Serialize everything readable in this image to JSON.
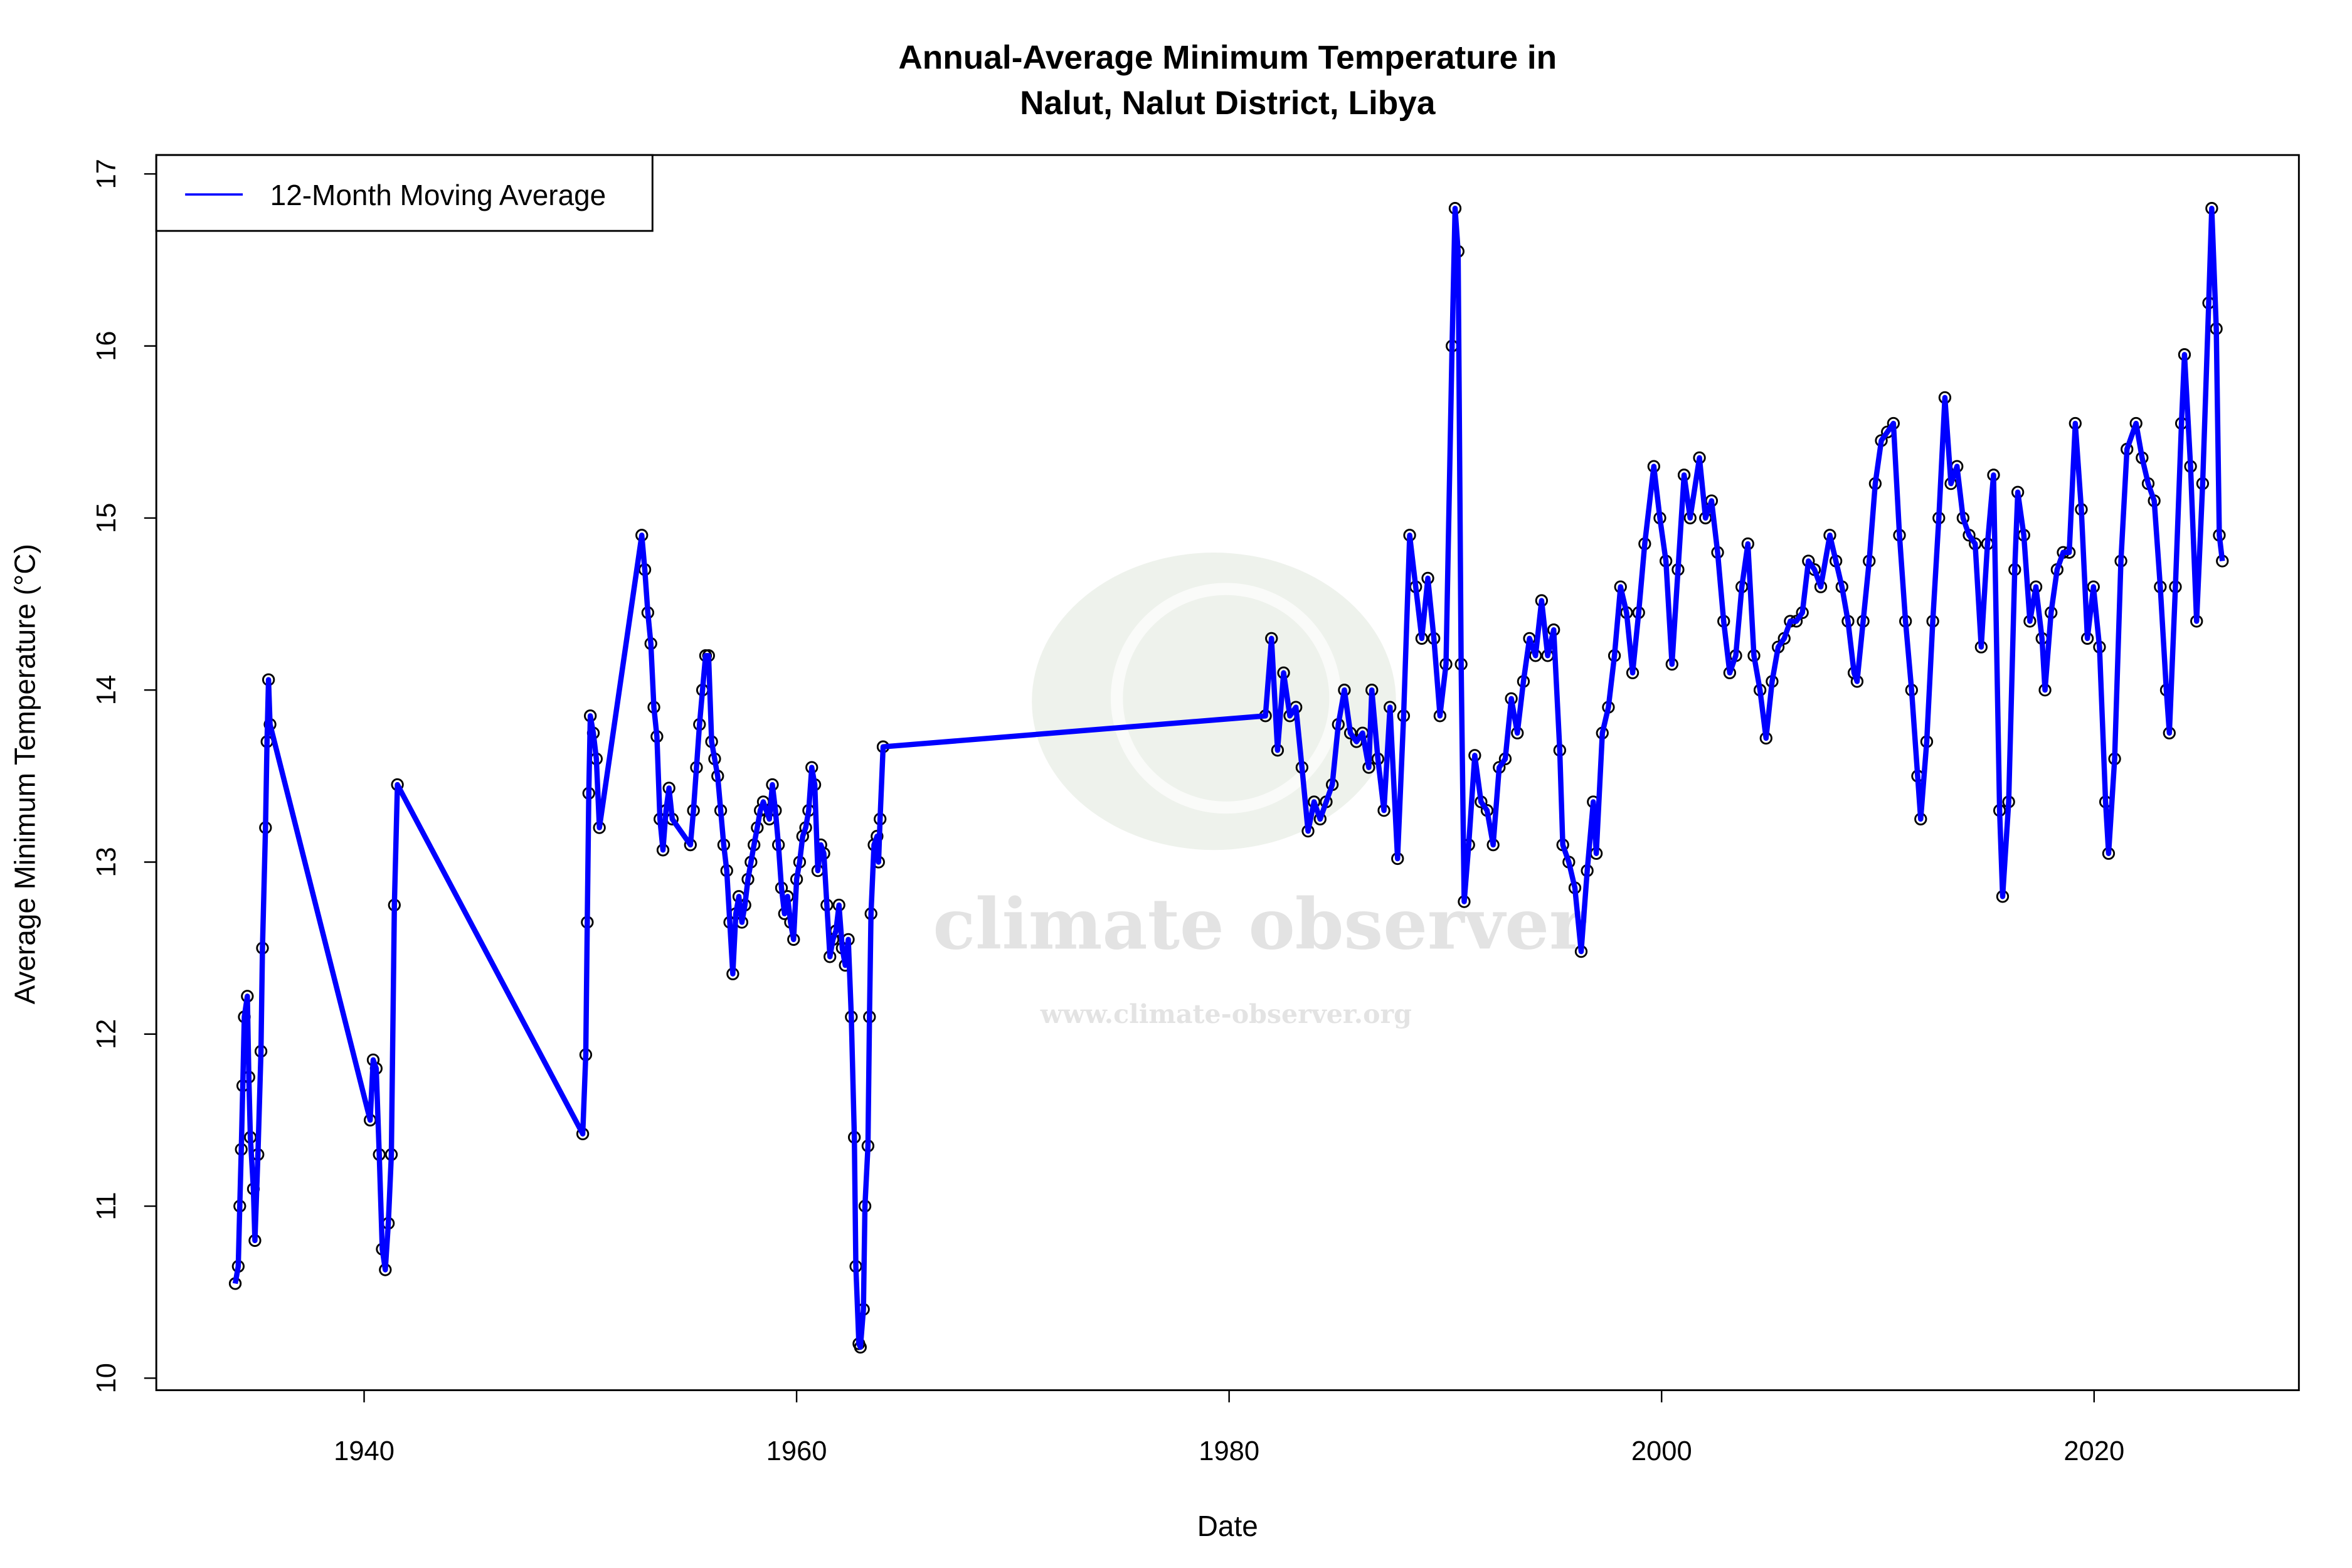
{
  "chart_data": {
    "type": "line",
    "title": [
      "Annual-Average Minimum Temperature in",
      "Nalut, Nalut District, Libya"
    ],
    "x_label": "Date",
    "y_label": "Average Minimum Temperature (°C)",
    "watermark": {
      "name": "climate observer",
      "url": "www.climate-observer.org"
    },
    "legend": "top-left",
    "markers": true,
    "marker_color": "#000000",
    "xlim": [
      1930.39,
      2029.47
    ],
    "ylim": [
      9.93,
      17.11
    ],
    "xticks": [
      1940,
      1960,
      1980,
      2000,
      2020
    ],
    "yticks": [
      10,
      11,
      12,
      13,
      14,
      15,
      16,
      17
    ],
    "x": [
      1934.04,
      1934.18,
      1934.25,
      1934.32,
      1934.39,
      1934.46,
      1934.6,
      1934.67,
      1934.74,
      1934.88,
      1934.95,
      1935.09,
      1935.23,
      1935.3,
      1935.44,
      1935.51,
      1935.58,
      1935.65,
      1940.28,
      1940.42,
      1940.56,
      1940.7,
      1940.84,
      1940.98,
      1941.12,
      1941.26,
      1941.4,
      1941.54,
      1950.11,
      1950.25,
      1950.32,
      1950.39,
      1950.46,
      1950.6,
      1950.74,
      1950.88,
      1952.84,
      1952.98,
      1953.12,
      1953.26,
      1953.4,
      1953.54,
      1953.68,
      1953.82,
      1953.96,
      1954.1,
      1954.25,
      1955.09,
      1955.23,
      1955.37,
      1955.51,
      1955.65,
      1955.79,
      1955.93,
      1956.07,
      1956.21,
      1956.35,
      1956.49,
      1956.63,
      1956.77,
      1956.91,
      1957.05,
      1957.19,
      1957.33,
      1957.47,
      1957.61,
      1957.75,
      1957.89,
      1958.03,
      1958.18,
      1958.32,
      1958.46,
      1958.6,
      1958.74,
      1958.88,
      1959.02,
      1959.16,
      1959.3,
      1959.44,
      1959.58,
      1959.72,
      1959.86,
      1960.0,
      1960.14,
      1960.28,
      1960.42,
      1960.56,
      1960.7,
      1960.84,
      1960.98,
      1961.12,
      1961.26,
      1961.4,
      1961.54,
      1961.68,
      1961.82,
      1961.96,
      1962.11,
      1962.25,
      1962.39,
      1962.53,
      1962.67,
      1962.74,
      1962.88,
      1962.95,
      1963.09,
      1963.16,
      1963.3,
      1963.37,
      1963.44,
      1963.58,
      1963.72,
      1963.79,
      1963.86,
      1964.0,
      1981.68,
      1981.96,
      1982.24,
      1982.52,
      1982.81,
      1983.09,
      1983.37,
      1983.65,
      1983.93,
      1984.21,
      1984.49,
      1984.77,
      1985.05,
      1985.33,
      1985.61,
      1985.89,
      1986.17,
      1986.46,
      1986.6,
      1986.88,
      1987.16,
      1987.44,
      1987.79,
      1988.07,
      1988.35,
      1988.63,
      1988.91,
      1989.19,
      1989.47,
      1989.75,
      1990.03,
      1990.31,
      1990.45,
      1990.59,
      1990.73,
      1990.87,
      1991.08,
      1991.36,
      1991.65,
      1991.93,
      1992.21,
      1992.49,
      1992.77,
      1993.05,
      1993.33,
      1993.61,
      1993.89,
      1994.17,
      1994.45,
      1994.73,
      1995.01,
      1995.29,
      1995.43,
      1995.71,
      1995.99,
      1996.28,
      1996.56,
      1996.84,
      1996.98,
      1997.26,
      1997.54,
      1997.82,
      1998.1,
      1998.38,
      1998.66,
      1998.94,
      1999.22,
      1999.64,
      1999.92,
      2000.2,
      2000.48,
      2000.76,
      2001.04,
      2001.32,
      2001.75,
      2002.03,
      2002.31,
      2002.59,
      2002.87,
      2003.15,
      2003.43,
      2003.71,
      2003.99,
      2004.27,
      2004.55,
      2004.83,
      2005.11,
      2005.39,
      2005.67,
      2005.95,
      2006.23,
      2006.51,
      2006.79,
      2007.07,
      2007.36,
      2007.78,
      2008.06,
      2008.34,
      2008.62,
      2008.9,
      2009.04,
      2009.32,
      2009.6,
      2009.88,
      2010.16,
      2010.44,
      2010.72,
      2011.0,
      2011.28,
      2011.56,
      2011.84,
      2011.98,
      2012.26,
      2012.54,
      2012.82,
      2013.1,
      2013.38,
      2013.66,
      2013.94,
      2014.22,
      2014.5,
      2014.78,
      2015.07,
      2015.35,
      2015.63,
      2015.77,
      2016.05,
      2016.33,
      2016.47,
      2016.75,
      2017.03,
      2017.31,
      2017.59,
      2017.73,
      2018.01,
      2018.29,
      2018.57,
      2018.85,
      2019.13,
      2019.41,
      2019.69,
      2019.97,
      2020.25,
      2020.53,
      2020.67,
      2020.95,
      2021.24,
      2021.52,
      2021.94,
      2022.22,
      2022.5,
      2022.78,
      2023.06,
      2023.34,
      2023.48,
      2023.76,
      2024.04,
      2024.18,
      2024.46,
      2024.74,
      2025.02,
      2025.3,
      2025.44,
      2025.65,
      2025.79,
      2025.93
    ],
    "series": [
      {
        "name": "12-Month Moving Average",
        "color": "#0000ff",
        "values": [
          10.55,
          10.65,
          11.0,
          11.33,
          11.7,
          12.1,
          12.22,
          11.75,
          11.4,
          11.1,
          10.8,
          11.3,
          11.9,
          12.5,
          13.2,
          13.7,
          14.06,
          13.8,
          11.5,
          11.85,
          11.8,
          11.3,
          10.75,
          10.63,
          10.9,
          11.3,
          12.75,
          13.45,
          11.42,
          11.88,
          12.65,
          13.4,
          13.85,
          13.75,
          13.6,
          13.2,
          14.9,
          14.7,
          14.45,
          14.27,
          13.9,
          13.73,
          13.25,
          13.07,
          13.3,
          13.43,
          13.25,
          13.1,
          13.3,
          13.55,
          13.8,
          14.0,
          14.2,
          14.2,
          13.7,
          13.6,
          13.5,
          13.3,
          13.1,
          12.95,
          12.65,
          12.35,
          12.7,
          12.8,
          12.65,
          12.75,
          12.9,
          13.0,
          13.1,
          13.2,
          13.3,
          13.35,
          13.3,
          13.25,
          13.45,
          13.3,
          13.1,
          12.85,
          12.7,
          12.8,
          12.65,
          12.55,
          12.9,
          13.0,
          13.15,
          13.2,
          13.3,
          13.55,
          13.45,
          12.95,
          13.1,
          13.05,
          12.75,
          12.45,
          12.55,
          12.6,
          12.75,
          12.5,
          12.4,
          12.55,
          12.1,
          11.4,
          10.65,
          10.2,
          10.18,
          10.4,
          11.0,
          11.35,
          12.1,
          12.7,
          13.1,
          13.15,
          13.0,
          13.25,
          13.67,
          13.85,
          14.3,
          13.65,
          14.1,
          13.85,
          13.9,
          13.55,
          13.18,
          13.35,
          13.25,
          13.35,
          13.45,
          13.8,
          14.0,
          13.75,
          13.7,
          13.75,
          13.55,
          14.0,
          13.6,
          13.3,
          13.9,
          13.02,
          13.85,
          14.9,
          14.6,
          14.3,
          14.65,
          14.3,
          13.85,
          14.15,
          16.0,
          16.8,
          16.55,
          14.15,
          12.77,
          13.1,
          13.62,
          13.35,
          13.3,
          13.1,
          13.55,
          13.6,
          13.95,
          13.75,
          14.05,
          14.3,
          14.2,
          14.52,
          14.2,
          14.35,
          13.65,
          13.1,
          13.0,
          12.85,
          12.48,
          12.95,
          13.35,
          13.05,
          13.75,
          13.9,
          14.2,
          14.6,
          14.45,
          14.1,
          14.45,
          14.85,
          15.3,
          15.0,
          14.75,
          14.15,
          14.7,
          15.25,
          15.0,
          15.35,
          15.0,
          15.1,
          14.8,
          14.4,
          14.1,
          14.2,
          14.6,
          14.85,
          14.2,
          14.0,
          13.72,
          14.05,
          14.25,
          14.3,
          14.4,
          14.4,
          14.45,
          14.75,
          14.7,
          14.6,
          14.9,
          14.75,
          14.6,
          14.4,
          14.1,
          14.05,
          14.4,
          14.75,
          15.2,
          15.45,
          15.5,
          15.55,
          14.9,
          14.4,
          14.0,
          13.5,
          13.25,
          13.7,
          14.4,
          15.0,
          15.7,
          15.2,
          15.3,
          15.0,
          14.9,
          14.85,
          14.25,
          14.85,
          15.25,
          13.3,
          12.8,
          13.35,
          14.7,
          15.15,
          14.9,
          14.4,
          14.6,
          14.3,
          14.0,
          14.45,
          14.7,
          14.8,
          14.8,
          15.55,
          15.05,
          14.3,
          14.6,
          14.25,
          13.35,
          13.05,
          13.6,
          14.75,
          15.4,
          15.55,
          15.35,
          15.2,
          15.1,
          14.6,
          14.0,
          13.75,
          14.6,
          15.55,
          15.95,
          15.3,
          14.4,
          15.2,
          16.25,
          16.8,
          16.1,
          14.9,
          14.75
        ]
      }
    ]
  }
}
